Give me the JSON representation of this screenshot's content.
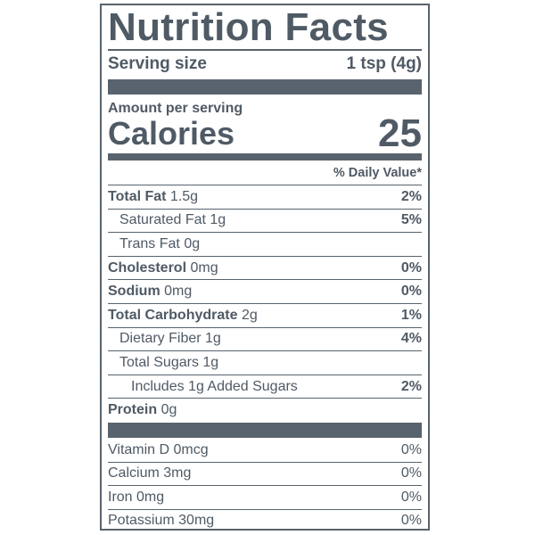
{
  "title": "Nutrition Facts",
  "serving": {
    "label": "Serving size",
    "value": "1 tsp (4g)"
  },
  "amount_per_serving": "Amount per serving",
  "calories": {
    "label": "Calories",
    "value": "25"
  },
  "daily_value_header": "% Daily Value*",
  "nutrients": [
    {
      "name": "Total Fat",
      "amount": "1.5g",
      "dv": "2%"
    },
    {
      "name": "Saturated Fat",
      "amount": "1g",
      "dv": "5%"
    },
    {
      "name": "Trans Fat",
      "amount": "0g",
      "dv": ""
    },
    {
      "name": "Cholesterol",
      "amount": "0mg",
      "dv": "0%"
    },
    {
      "name": "Sodium",
      "amount": "0mg",
      "dv": "0%"
    },
    {
      "name": "Total Carbohydrate",
      "amount": "2g",
      "dv": "1%"
    },
    {
      "name": "Dietary Fiber",
      "amount": "1g",
      "dv": "4%"
    },
    {
      "name": "Total Sugars",
      "amount": "1g",
      "dv": ""
    },
    {
      "name": "Includes 1g Added Sugars",
      "amount": "",
      "dv": "2%"
    },
    {
      "name": "Protein",
      "amount": "0g",
      "dv": ""
    }
  ],
  "vitamins": [
    {
      "name": "Vitamin D",
      "amount": "0mcg",
      "dv": "0%"
    },
    {
      "name": "Calcium",
      "amount": "3mg",
      "dv": "0%"
    },
    {
      "name": "Iron",
      "amount": "0mg",
      "dv": "0%"
    },
    {
      "name": "Potassium",
      "amount": "30mg",
      "dv": "0%"
    }
  ]
}
